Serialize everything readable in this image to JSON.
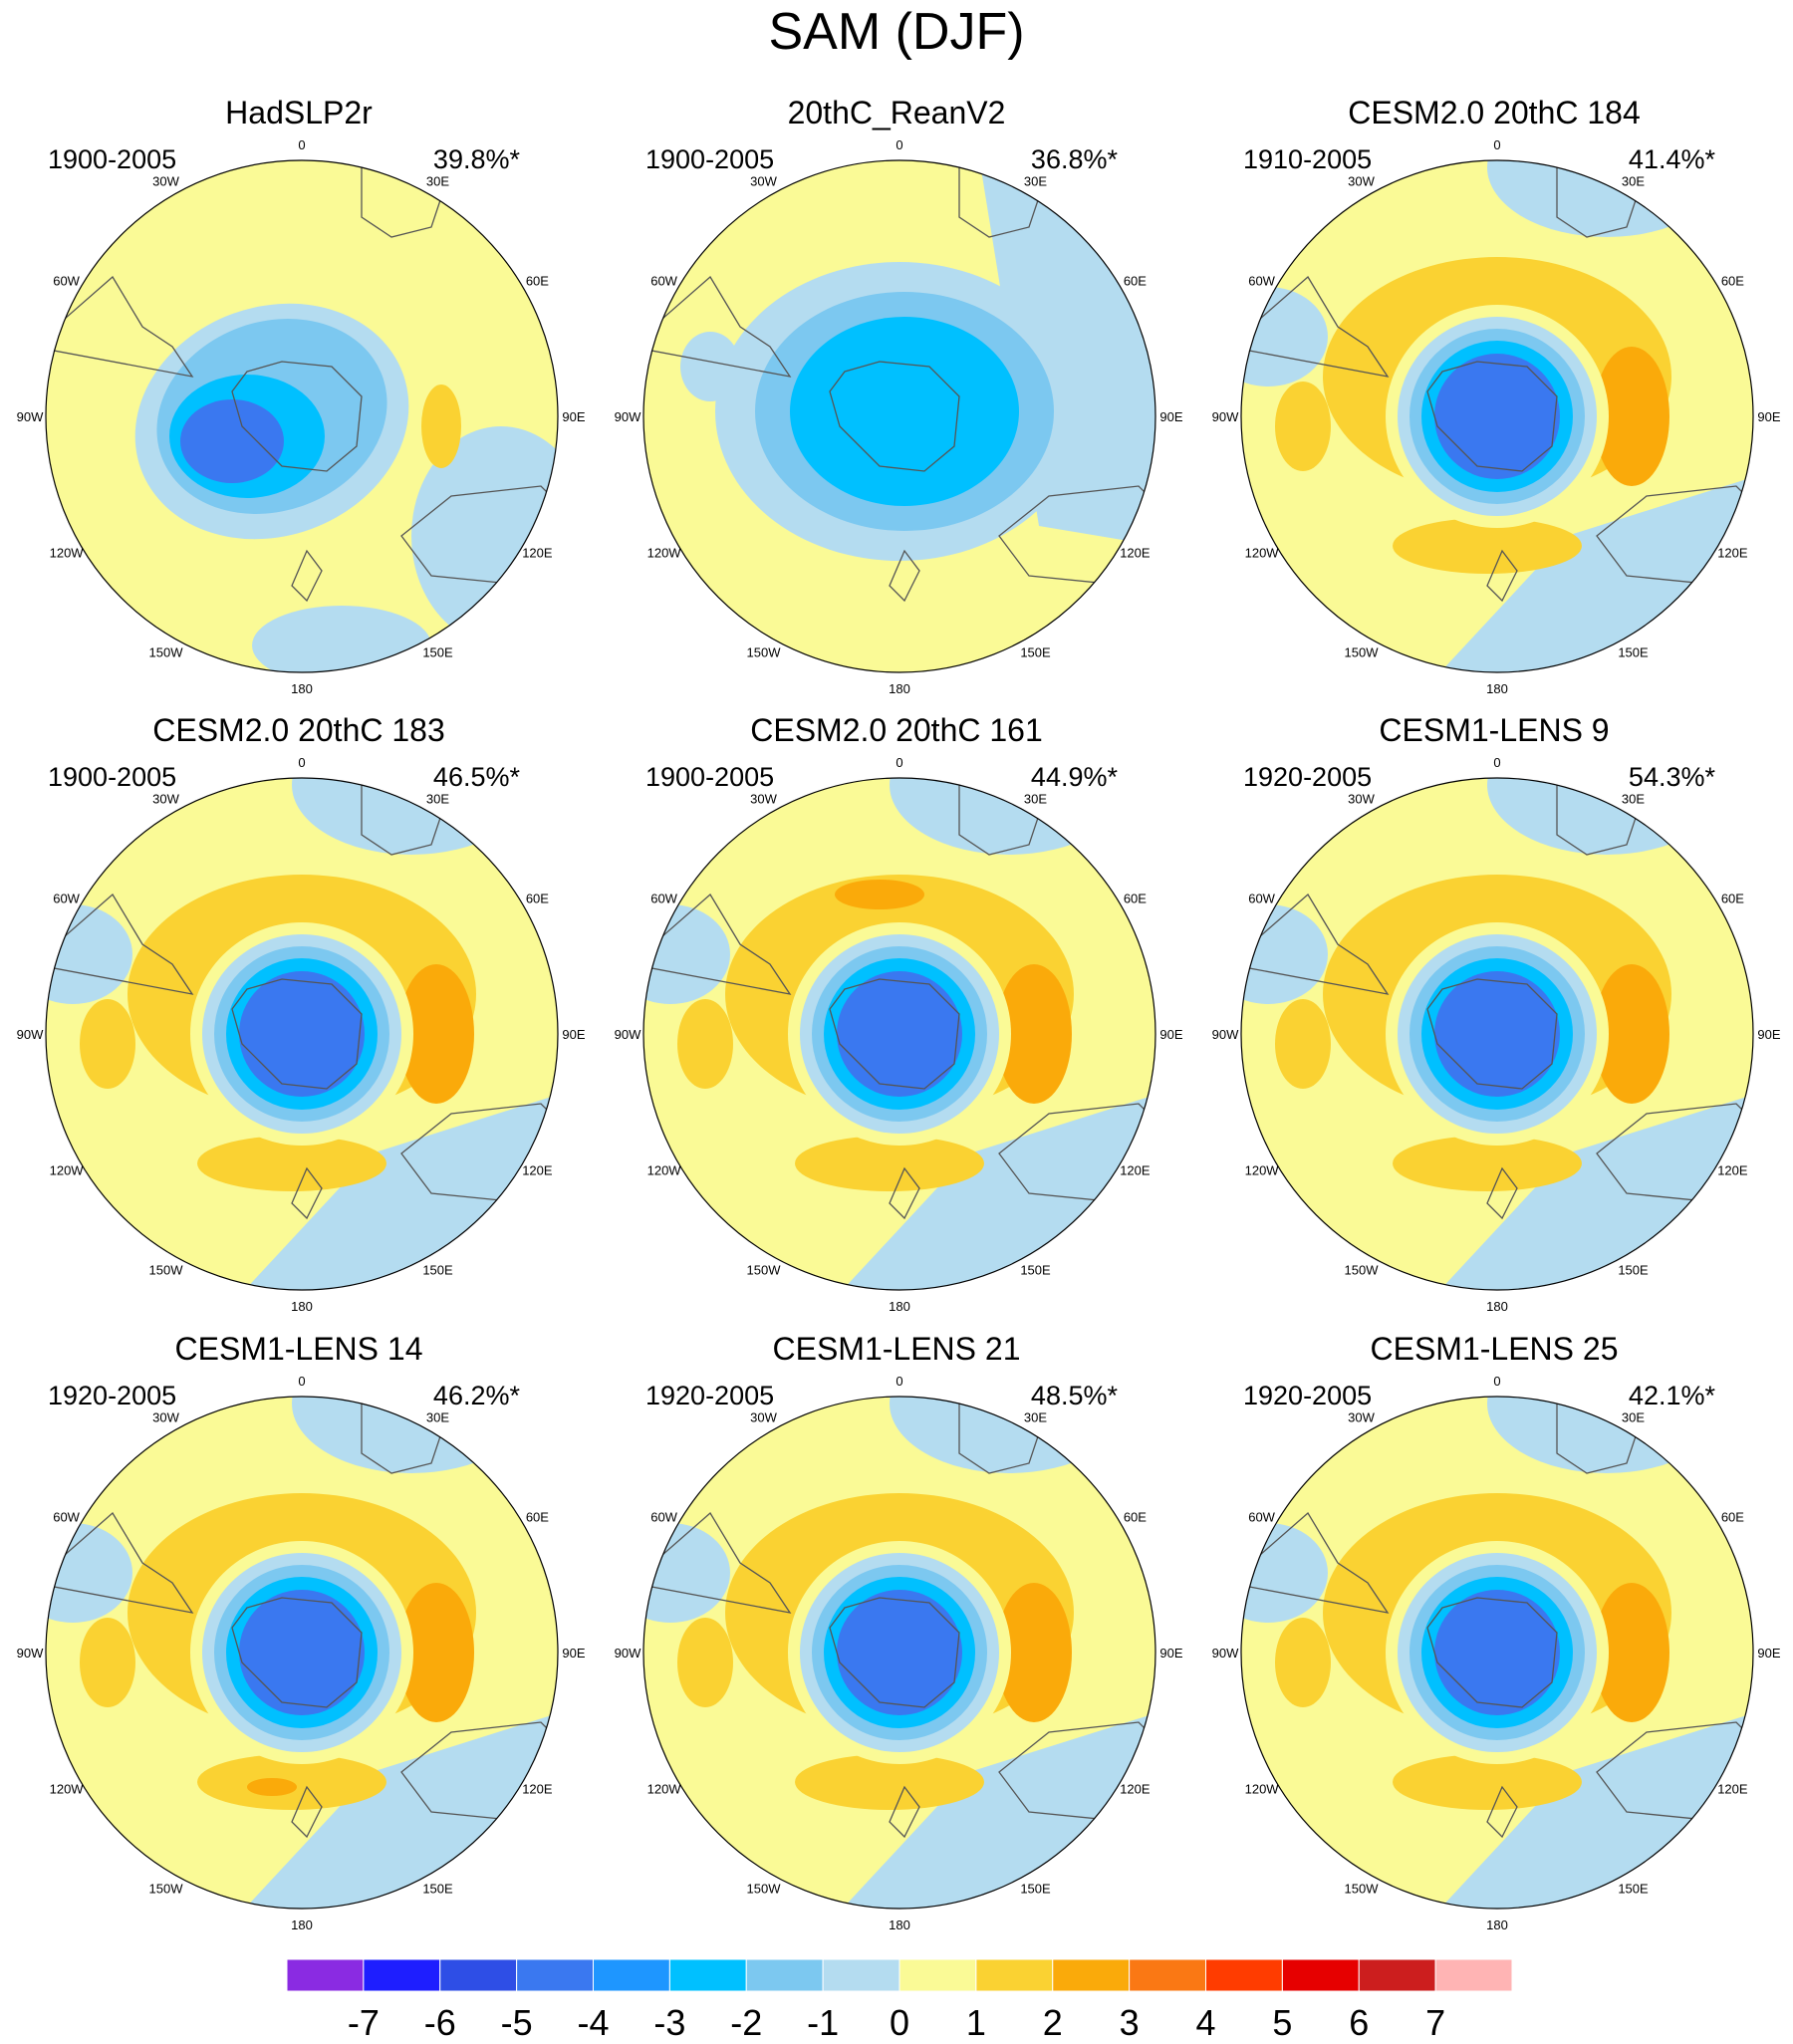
{
  "figure": {
    "title": "SAM (DJF)",
    "longitude_labels": [
      "0",
      "30E",
      "60E",
      "90E",
      "120E",
      "150E",
      "180",
      "150W",
      "120W",
      "90W",
      "60W",
      "30W"
    ]
  },
  "panels": [
    {
      "title": "HadSLP2r",
      "years": "1900-2005",
      "variance": "39.8%*"
    },
    {
      "title": "20thC_ReanV2",
      "years": "1900-2005",
      "variance": "36.8%*"
    },
    {
      "title": "CESM2.0 20thC 184",
      "years": "1910-2005",
      "variance": "41.4%*"
    },
    {
      "title": "CESM2.0 20thC 183",
      "years": "1900-2005",
      "variance": "46.5%*"
    },
    {
      "title": "CESM2.0 20thC 161",
      "years": "1900-2005",
      "variance": "44.9%*"
    },
    {
      "title": "CESM1-LENS 9",
      "years": "1920-2005",
      "variance": "54.3%*"
    },
    {
      "title": "CESM1-LENS 14",
      "years": "1920-2005",
      "variance": "46.2%*"
    },
    {
      "title": "CESM1-LENS 21",
      "years": "1920-2005",
      "variance": "48.5%*"
    },
    {
      "title": "CESM1-LENS 25",
      "years": "1920-2005",
      "variance": "42.1%*"
    }
  ],
  "colorbar": {
    "labels": [
      "-7",
      "-6",
      "-5",
      "-4",
      "-3",
      "-2",
      "-1",
      "0",
      "1",
      "2",
      "3",
      "4",
      "5",
      "6",
      "7"
    ],
    "colors": [
      "#8a2be2",
      "#1e1eff",
      "#2e4ee6",
      "#3a78f0",
      "#1e96ff",
      "#00c0ff",
      "#7cc8f0",
      "#b4dcf0",
      "#fafa96",
      "#fad232",
      "#faaa0a",
      "#fa7814",
      "#ff3c00",
      "#e60000",
      "#cc1e1e",
      "#ffb4b4"
    ]
  },
  "colors": {
    "ocean_zero": "#fafa96",
    "ring_neg1": "#b4dcf0",
    "ring_neg2": "#7cc8f0",
    "ring_neg3": "#00c0ff",
    "ring_neg4": "#3a78f0",
    "ring_pos1": "#fad232",
    "ring_pos2": "#faaa0a",
    "coastline": "#555555"
  }
}
